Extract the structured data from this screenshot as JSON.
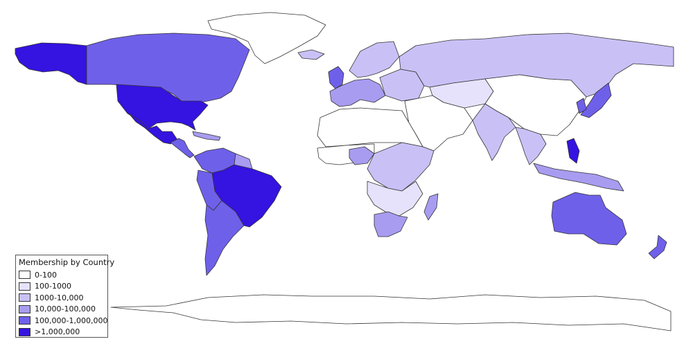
{
  "legend": {
    "title": "Membership by Country",
    "classes": [
      {
        "label": "0-100",
        "color": "#ffffff"
      },
      {
        "label": "100-1000",
        "color": "#e6e2fb"
      },
      {
        "label": "1000-10,000",
        "color": "#c9c1f6"
      },
      {
        "label": "10,000-100,000",
        "color": "#a79cf0"
      },
      {
        "label": "100,000-1,000,000",
        "color": "#6f60ea"
      },
      {
        "label": ">1,000,000",
        "color": "#3513e0"
      }
    ]
  },
  "regions": [
    {
      "name": "alaska",
      "class": 5
    },
    {
      "name": "canada",
      "class": 4
    },
    {
      "name": "greenland",
      "class": 0
    },
    {
      "name": "usa",
      "class": 5
    },
    {
      "name": "mexico",
      "class": 5
    },
    {
      "name": "central-america",
      "class": 4
    },
    {
      "name": "caribbean",
      "class": 3
    },
    {
      "name": "colombia-venezuela",
      "class": 4
    },
    {
      "name": "guianas",
      "class": 3
    },
    {
      "name": "brazil",
      "class": 5
    },
    {
      "name": "peru-bolivia",
      "class": 4
    },
    {
      "name": "southern-cone",
      "class": 4
    },
    {
      "name": "iceland",
      "class": 2
    },
    {
      "name": "uk-ireland",
      "class": 4
    },
    {
      "name": "scandinavia",
      "class": 2
    },
    {
      "name": "western-europe",
      "class": 3
    },
    {
      "name": "eastern-europe",
      "class": 2
    },
    {
      "name": "russia",
      "class": 2
    },
    {
      "name": "central-asia",
      "class": 1
    },
    {
      "name": "china-mongolia",
      "class": 0
    },
    {
      "name": "middle-east",
      "class": 0
    },
    {
      "name": "north-africa",
      "class": 0
    },
    {
      "name": "west-africa",
      "class": 0
    },
    {
      "name": "nigeria",
      "class": 3
    },
    {
      "name": "central-east-africa",
      "class": 2
    },
    {
      "name": "southern-africa",
      "class": 1
    },
    {
      "name": "south-africa",
      "class": 3
    },
    {
      "name": "madagascar",
      "class": 3
    },
    {
      "name": "india",
      "class": 2
    },
    {
      "name": "southeast-asia",
      "class": 2
    },
    {
      "name": "philippines",
      "class": 5
    },
    {
      "name": "japan",
      "class": 4
    },
    {
      "name": "korea",
      "class": 4
    },
    {
      "name": "indonesia-png",
      "class": 3
    },
    {
      "name": "australia",
      "class": 4
    },
    {
      "name": "new-zealand",
      "class": 4
    },
    {
      "name": "antarctica",
      "class": 0
    }
  ]
}
